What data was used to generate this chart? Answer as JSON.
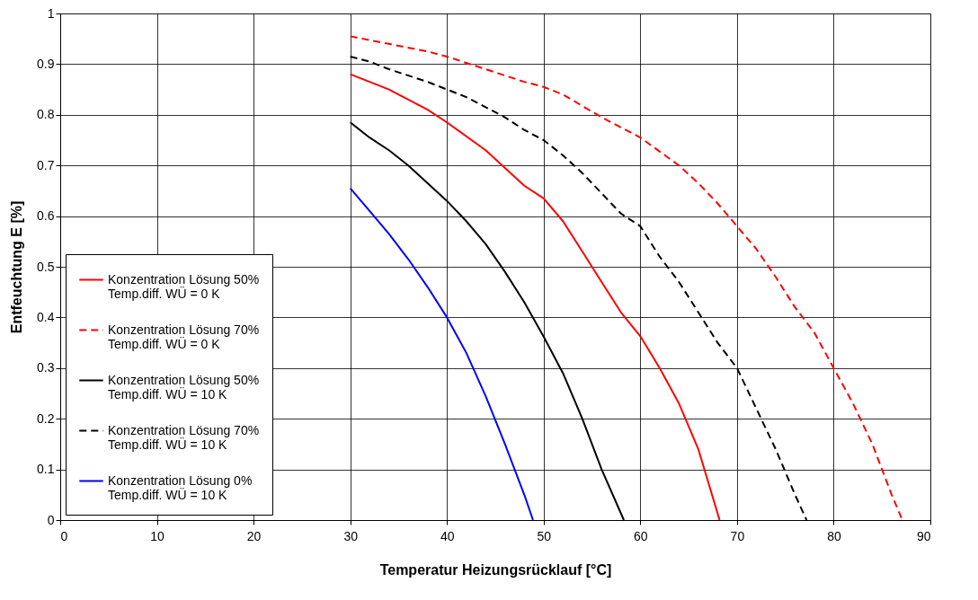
{
  "chart_data": {
    "type": "line",
    "xlabel": "Temperatur Heizungsrücklauf [°C]",
    "ylabel": "Entfeuchtung E [%]",
    "xlim": [
      0,
      90
    ],
    "xticks": [
      0,
      10,
      20,
      30,
      40,
      50,
      60,
      70,
      80,
      90
    ],
    "ylim": [
      0,
      1
    ],
    "yticks": [
      0,
      0.1,
      0.2,
      0.3,
      0.4,
      0.5,
      0.6,
      0.7,
      0.8,
      0.9,
      1
    ],
    "grid": true,
    "legend": "bottom left",
    "marker": "none",
    "series": [
      {
        "name": "Konzentration Lösung 50%\nTemp.diff. WÜ = 0 K",
        "color": "#ff0000",
        "line_style": "solid",
        "x": [
          30,
          34,
          38,
          40,
          44,
          48,
          50,
          52,
          54,
          56,
          58,
          60,
          62,
          64,
          66,
          68.2
        ],
        "values": [
          0.88,
          0.85,
          0.81,
          0.785,
          0.73,
          0.66,
          0.635,
          0.59,
          0.53,
          0.47,
          0.41,
          0.363,
          0.3,
          0.23,
          0.14,
          0
        ]
      },
      {
        "name": "Konzentration Lösung 70%\nTemp.diff. WÜ = 0 K",
        "color": "#ff0000",
        "line_style": "dashed",
        "x": [
          30,
          34,
          38,
          40,
          44,
          48,
          50,
          52,
          56,
          60,
          64,
          66,
          68,
          70,
          72,
          74,
          76,
          78,
          80,
          82,
          84,
          86,
          87.1
        ],
        "values": [
          0.955,
          0.94,
          0.925,
          0.915,
          0.89,
          0.865,
          0.855,
          0.84,
          0.795,
          0.755,
          0.7,
          0.665,
          0.625,
          0.58,
          0.535,
          0.48,
          0.42,
          0.37,
          0.3,
          0.23,
          0.15,
          0.05,
          0
        ]
      },
      {
        "name": "Konzentration Lösung 50%\nTemp.diff. WÜ = 10 K",
        "color": "#000000",
        "line_style": "solid",
        "x": [
          30,
          32,
          34,
          36,
          38,
          40,
          42,
          44,
          46,
          48,
          50,
          52,
          54,
          56,
          58.3
        ],
        "values": [
          0.785,
          0.755,
          0.73,
          0.7,
          0.665,
          0.63,
          0.59,
          0.545,
          0.49,
          0.43,
          0.362,
          0.29,
          0.2,
          0.1,
          0
        ]
      },
      {
        "name": "Konzentration Lösung 70%\nTemp.diff. WÜ = 10 K",
        "color": "#000000",
        "line_style": "dashed",
        "x": [
          30,
          32,
          34,
          38,
          40,
          42,
          44,
          46,
          48,
          50,
          52,
          54,
          56,
          58,
          60,
          62,
          64,
          66,
          68,
          70,
          72,
          74,
          76,
          77.2
        ],
        "values": [
          0.915,
          0.905,
          0.89,
          0.865,
          0.85,
          0.835,
          0.815,
          0.795,
          0.77,
          0.75,
          0.72,
          0.685,
          0.645,
          0.605,
          0.58,
          0.52,
          0.47,
          0.41,
          0.35,
          0.3,
          0.22,
          0.14,
          0.05,
          0
        ]
      },
      {
        "name": "Konzentration Lösung 0%\nTemp.diff. WÜ = 10 K",
        "color": "#0000ff",
        "line_style": "solid",
        "x": [
          30,
          32,
          34,
          36,
          38,
          40,
          42,
          44,
          46,
          48,
          48.9
        ],
        "values": [
          0.655,
          0.61,
          0.565,
          0.515,
          0.46,
          0.4,
          0.33,
          0.245,
          0.15,
          0.05,
          0
        ]
      }
    ]
  }
}
